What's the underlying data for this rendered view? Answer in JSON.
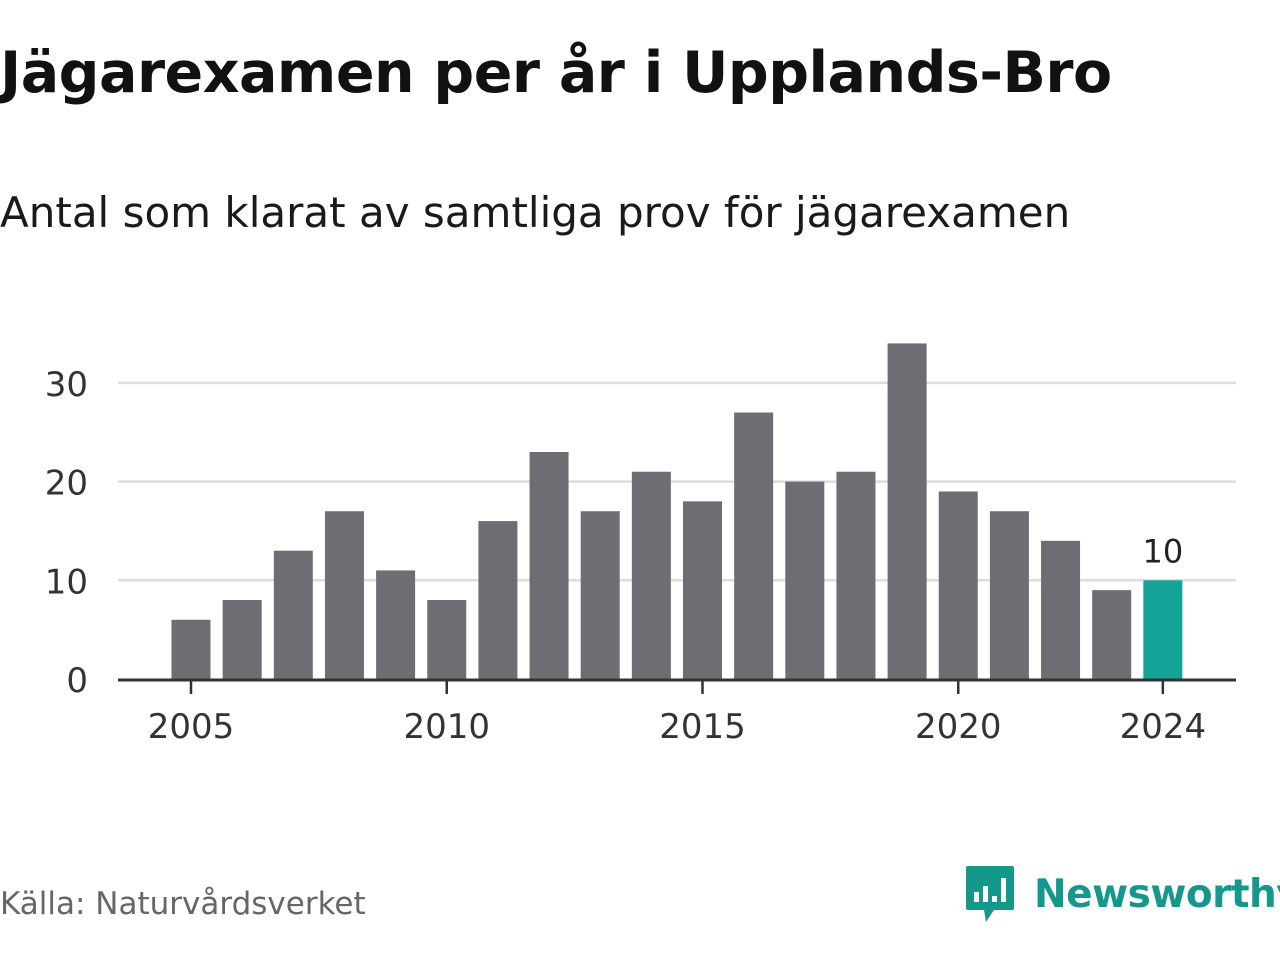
{
  "title": "Jägarexamen per år i Upplands-Bro",
  "subtitle": "Antal som klarat av samtliga prov för jägarexamen",
  "source": "Källa: Naturvårdsverket",
  "brand": {
    "name": "Newsworthy",
    "icon": "newsworthy-logo-icon",
    "color": "#14988b"
  },
  "colors": {
    "bar": "#6e6d73",
    "highlight": "#14a396",
    "grid": "#dddddd",
    "axis": "#333333"
  },
  "chart_data": {
    "type": "bar",
    "title": "Jägarexamen per år i Upplands-Bro",
    "subtitle": "Antal som klarat av samtliga prov för jägarexamen",
    "x": [
      2005,
      2006,
      2007,
      2008,
      2009,
      2010,
      2011,
      2012,
      2013,
      2014,
      2015,
      2016,
      2017,
      2018,
      2019,
      2020,
      2021,
      2022,
      2023,
      2024
    ],
    "values": [
      6,
      8,
      13,
      17,
      11,
      8,
      16,
      23,
      17,
      21,
      18,
      27,
      20,
      21,
      34,
      19,
      17,
      14,
      9,
      10
    ],
    "ylim": [
      0,
      35
    ],
    "yticks": [
      0,
      10,
      20,
      30
    ],
    "xticks": [
      2005,
      2010,
      2015,
      2020,
      2024
    ],
    "highlight": {
      "x": 2024,
      "label": "10"
    },
    "grid": true,
    "legend": "none"
  }
}
